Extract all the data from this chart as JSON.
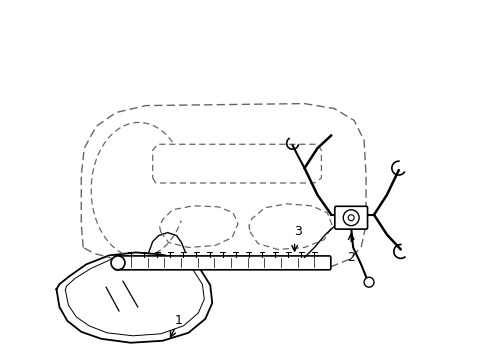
{
  "background_color": "#ffffff",
  "line_color": "#000000",
  "dashed_color": "#666666",
  "label_1": "1",
  "label_2": "2",
  "label_3": "3",
  "fig_width": 4.89,
  "fig_height": 3.6,
  "dpi": 100
}
